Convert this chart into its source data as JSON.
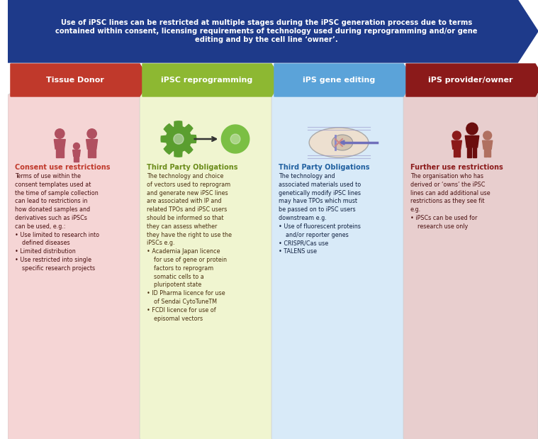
{
  "banner_text": "Use of iPSC lines can be restricted at multiple stages during the iPSC generation process due to terms\ncontained within consent, licensing requirements of technology used during reprogramming and/or gene\nediting and by the cell line ‘owner’.",
  "banner_bg": "#1e3a8a",
  "banner_text_color": "#ffffff",
  "columns": [
    {
      "header": "Tissue Donor",
      "header_bg": "#c0392b",
      "panel_bg": "#f5d5d5",
      "header_text_color": "#ffffff",
      "title": "Consent use restrictions",
      "title_color": "#c0392b",
      "body_color": "#4a1010",
      "body_text": "Terms of use within the\nconsent templates used at\nthe time of sample collection\ncan lead to restrictions in\nhow donated samples and\nderivatives such as iPSCs\ncan be used, e.g.:\n• Use limited to research into\n    defined diseases\n• Limited distribution\n• Use restricted into single\n    specific research projects"
    },
    {
      "header": "iPSC reprogramming",
      "header_bg": "#8db832",
      "panel_bg": "#f0f5d0",
      "header_text_color": "#ffffff",
      "title": "Third Party Obligations",
      "title_color": "#6b8c1a",
      "body_color": "#4a3010",
      "body_text": "The technology and choice\nof vectors used to reprogram\nand generate new iPSC lines\nare associated with IP and\nrelated TPOs and iPSC users\nshould be informed so that\nthey can assess whether\nthey have the right to use the\niPSCs e.g.\n• Academia Japan licence\n    for use of gene or protein\n    factors to reprogram\n    somatic cells to a\n    pluripotent state\n• ID Pharma licence for use\n    of Sendai CytoTuneTM\n• FCDI licence for use of\n    episomal vectors"
    },
    {
      "header": "iPS gene editing",
      "header_bg": "#5ba3d9",
      "panel_bg": "#d8eaf8",
      "header_text_color": "#ffffff",
      "title": "Third Party Obligations",
      "title_color": "#2060a0",
      "body_color": "#102040",
      "body_text": "The technology and\nassociated materials used to\ngenetically modify iPSC lines\nmay have TPOs which must\nbe passed on to iPSC users\ndownstream e.g.\n• Use of fluorescent proteins\n    and/or reporter genes\n• CRISPR/Cas use\n• TALENS use"
    },
    {
      "header": "iPS provider/owner",
      "header_bg": "#8b1a1a",
      "panel_bg": "#e8cece",
      "header_text_color": "#ffffff",
      "title": "Further use restrictions",
      "title_color": "#8b1a1a",
      "body_color": "#4a1010",
      "body_text": "The organisation who has\nderived or ‘owns’ the iPSC\nlines can add additional use\nrestrictions as they see fit\ne.g.\n• iPSCs can be used for\n    research use only"
    }
  ]
}
